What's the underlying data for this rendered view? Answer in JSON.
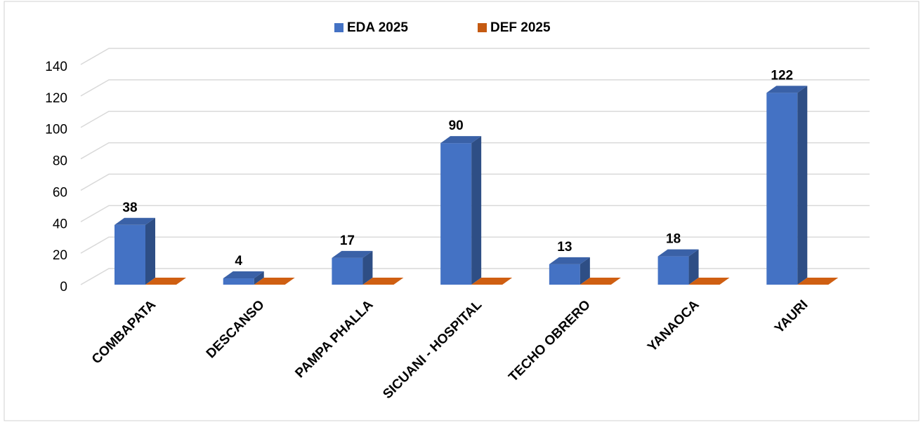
{
  "chart_data": {
    "type": "bar3d",
    "categories": [
      "COMBAPATA",
      "DESCANSO",
      "PAMPA PHALLA",
      "SICUANI - HOSPITAL",
      "TECHO OBRERO",
      "YANAOCA",
      "YAURI"
    ],
    "series": [
      {
        "name": "EDA 2025",
        "color": "#4472c4",
        "values": [
          38,
          4,
          17,
          90,
          13,
          18,
          122
        ],
        "data_labels": true
      },
      {
        "name": "DEF 2025",
        "color": "#c55a11",
        "values": [
          0,
          0,
          0,
          0,
          0,
          0,
          0
        ],
        "data_labels": false
      }
    ],
    "ylim": [
      0,
      140
    ],
    "yticks": [
      0,
      20,
      40,
      60,
      80,
      100,
      120,
      140
    ],
    "grid": true,
    "legend": "top"
  }
}
